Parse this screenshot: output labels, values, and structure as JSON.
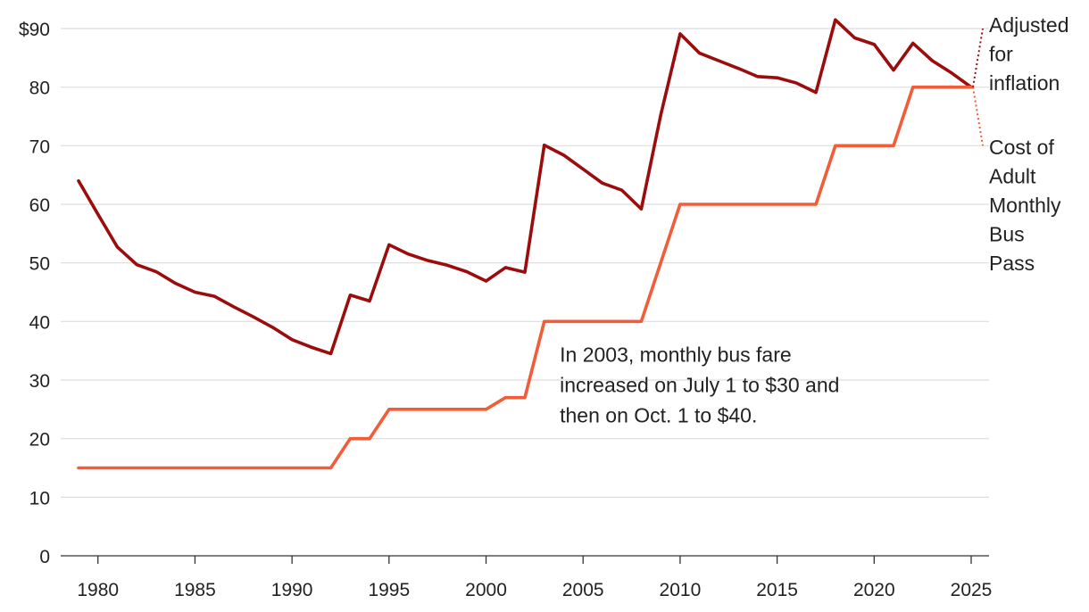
{
  "chart_data": {
    "type": "line",
    "title": "",
    "xlabel": "",
    "ylabel": "",
    "xlim": [
      1978,
      2026
    ],
    "ylim": [
      0,
      90
    ],
    "grid": true,
    "x_ticks": [
      {
        "value": 1980,
        "label": "1980"
      },
      {
        "value": 1985,
        "label": "1985"
      },
      {
        "value": 1990,
        "label": "1990"
      },
      {
        "value": 1995,
        "label": "1995"
      },
      {
        "value": 2000,
        "label": "2000"
      },
      {
        "value": 2005,
        "label": "2005"
      },
      {
        "value": 2010,
        "label": "2010"
      },
      {
        "value": 2015,
        "label": "2015"
      },
      {
        "value": 2020,
        "label": "2020"
      },
      {
        "value": 2025,
        "label": "2025"
      }
    ],
    "y_ticks": [
      {
        "value": 0,
        "label": "0"
      },
      {
        "value": 10,
        "label": "10"
      },
      {
        "value": 20,
        "label": "20"
      },
      {
        "value": 30,
        "label": "30"
      },
      {
        "value": 40,
        "label": "40"
      },
      {
        "value": 50,
        "label": "50"
      },
      {
        "value": 60,
        "label": "60"
      },
      {
        "value": 70,
        "label": "70"
      },
      {
        "value": 80,
        "label": "80"
      },
      {
        "value": 90,
        "label": "$90"
      }
    ],
    "series": [
      {
        "name": "Adjusted for inflation",
        "label_lines": [
          "Adjusted",
          "for",
          "inflation"
        ],
        "color": "#9b0d0d",
        "label_anchor_value": 90,
        "points": [
          [
            1979,
            64.0
          ],
          [
            1980,
            58.3
          ],
          [
            1981,
            52.7
          ],
          [
            1982,
            49.7
          ],
          [
            1983,
            48.5
          ],
          [
            1984,
            46.5
          ],
          [
            1985,
            45.0
          ],
          [
            1986,
            44.3
          ],
          [
            1987,
            42.5
          ],
          [
            1988,
            40.8
          ],
          [
            1989,
            39.0
          ],
          [
            1990,
            36.9
          ],
          [
            1991,
            35.6
          ],
          [
            1992,
            34.5
          ],
          [
            1993,
            44.5
          ],
          [
            1994,
            43.5
          ],
          [
            1995,
            53.1
          ],
          [
            1996,
            51.5
          ],
          [
            1997,
            50.4
          ],
          [
            1998,
            49.6
          ],
          [
            1999,
            48.5
          ],
          [
            2000,
            46.9
          ],
          [
            2001,
            49.2
          ],
          [
            2002,
            48.4
          ],
          [
            2003,
            70.1
          ],
          [
            2004,
            68.4
          ],
          [
            2005,
            66.0
          ],
          [
            2006,
            63.6
          ],
          [
            2007,
            62.4
          ],
          [
            2008,
            59.2
          ],
          [
            2009,
            75.2
          ],
          [
            2010,
            89.1
          ],
          [
            2011,
            85.8
          ],
          [
            2012,
            84.5
          ],
          [
            2013,
            83.2
          ],
          [
            2014,
            81.8
          ],
          [
            2015,
            81.6
          ],
          [
            2016,
            80.7
          ],
          [
            2017,
            79.1
          ],
          [
            2018,
            91.5
          ],
          [
            2019,
            88.4
          ],
          [
            2020,
            87.3
          ],
          [
            2021,
            82.9
          ],
          [
            2022,
            87.5
          ],
          [
            2023,
            84.5
          ],
          [
            2024,
            82.4
          ],
          [
            2025,
            80.0
          ]
        ]
      },
      {
        "name": "Cost of Adult Monthly Bus Pass",
        "label_lines": [
          "Cost of",
          "Adult",
          "Monthly",
          "Bus",
          "Pass"
        ],
        "color": "#f25c38",
        "label_anchor_value": 70,
        "points": [
          [
            1979,
            15
          ],
          [
            1992,
            15
          ],
          [
            1993,
            20
          ],
          [
            1994,
            20
          ],
          [
            1995,
            25
          ],
          [
            2000,
            25
          ],
          [
            2001,
            27
          ],
          [
            2002,
            27
          ],
          [
            2003,
            40
          ],
          [
            2008,
            40
          ],
          [
            2010,
            60
          ],
          [
            2017,
            60
          ],
          [
            2018,
            70
          ],
          [
            2021,
            70
          ],
          [
            2022,
            80
          ],
          [
            2025,
            80
          ]
        ]
      }
    ],
    "annotations": [
      {
        "lines": [
          "In 2003, monthly bus fare",
          "increased on July 1 to $30 and",
          "then on Oct. 1 to $40."
        ],
        "anchor_x": 2003.8,
        "anchor_y": 33.1
      }
    ]
  }
}
